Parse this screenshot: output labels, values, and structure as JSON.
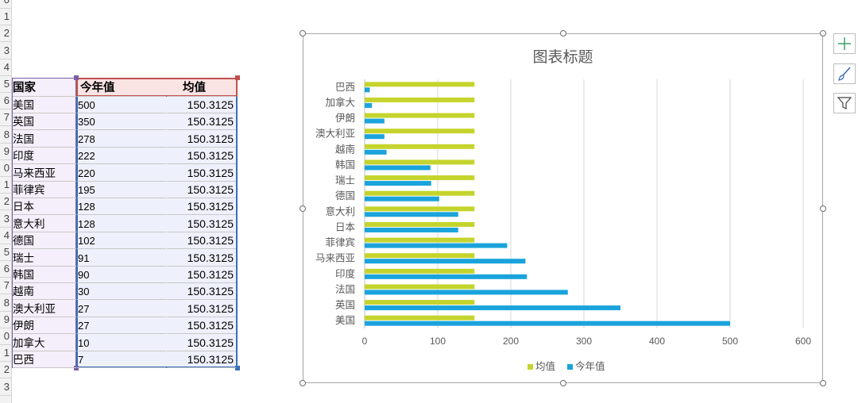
{
  "row_numbers": [
    "0",
    "1",
    "2",
    "3",
    "4",
    "5",
    "6",
    "7",
    "8",
    "9",
    "0",
    "1",
    "2",
    "3",
    "4",
    "5",
    "6",
    "7",
    "8",
    "9",
    "0",
    "1",
    "2",
    "3"
  ],
  "table": {
    "headers": {
      "country": "国家",
      "current": "今年值",
      "average": "均值"
    },
    "rows": [
      {
        "country": "美国",
        "current": "500",
        "average": "150.3125"
      },
      {
        "country": "英国",
        "current": "350",
        "average": "150.3125"
      },
      {
        "country": "法国",
        "current": "278",
        "average": "150.3125"
      },
      {
        "country": "印度",
        "current": "222",
        "average": "150.3125"
      },
      {
        "country": "马来西亚",
        "current": "220",
        "average": "150.3125"
      },
      {
        "country": "菲律宾",
        "current": "195",
        "average": "150.3125"
      },
      {
        "country": "日本",
        "current": "128",
        "average": "150.3125"
      },
      {
        "country": "意大利",
        "current": "128",
        "average": "150.3125"
      },
      {
        "country": "德国",
        "current": "102",
        "average": "150.3125"
      },
      {
        "country": "瑞士",
        "current": "91",
        "average": "150.3125"
      },
      {
        "country": "韩国",
        "current": "90",
        "average": "150.3125"
      },
      {
        "country": "越南",
        "current": "30",
        "average": "150.3125"
      },
      {
        "country": "澳大利亚",
        "current": "27",
        "average": "150.3125"
      },
      {
        "country": "伊朗",
        "current": "27",
        "average": "150.3125"
      },
      {
        "country": "加拿大",
        "current": "10",
        "average": "150.3125"
      },
      {
        "country": "巴西",
        "current": "7",
        "average": "150.3125"
      }
    ]
  },
  "chart_data": {
    "type": "bar",
    "orientation": "horizontal",
    "title": "图表标题",
    "categories": [
      "美国",
      "英国",
      "法国",
      "印度",
      "马来西亚",
      "菲律宾",
      "日本",
      "意大利",
      "德国",
      "瑞士",
      "韩国",
      "越南",
      "澳大利亚",
      "伊朗",
      "加拿大",
      "巴西"
    ],
    "series": [
      {
        "name": "均值",
        "color": "#c5d42c",
        "values": [
          150.3125,
          150.3125,
          150.3125,
          150.3125,
          150.3125,
          150.3125,
          150.3125,
          150.3125,
          150.3125,
          150.3125,
          150.3125,
          150.3125,
          150.3125,
          150.3125,
          150.3125,
          150.3125
        ]
      },
      {
        "name": "今年值",
        "color": "#1aa3dc",
        "values": [
          500,
          350,
          278,
          222,
          220,
          195,
          128,
          128,
          102,
          91,
          90,
          30,
          27,
          27,
          10,
          7
        ]
      }
    ],
    "xticks": [
      "0",
      "100",
      "200",
      "300",
      "400",
      "500",
      "600"
    ],
    "xlim": [
      0,
      600
    ],
    "grid": true,
    "legend": "bottom"
  },
  "chart_tools": {
    "add_icon": "plus-icon",
    "style_icon": "brush-icon",
    "filter_icon": "filter-icon"
  }
}
